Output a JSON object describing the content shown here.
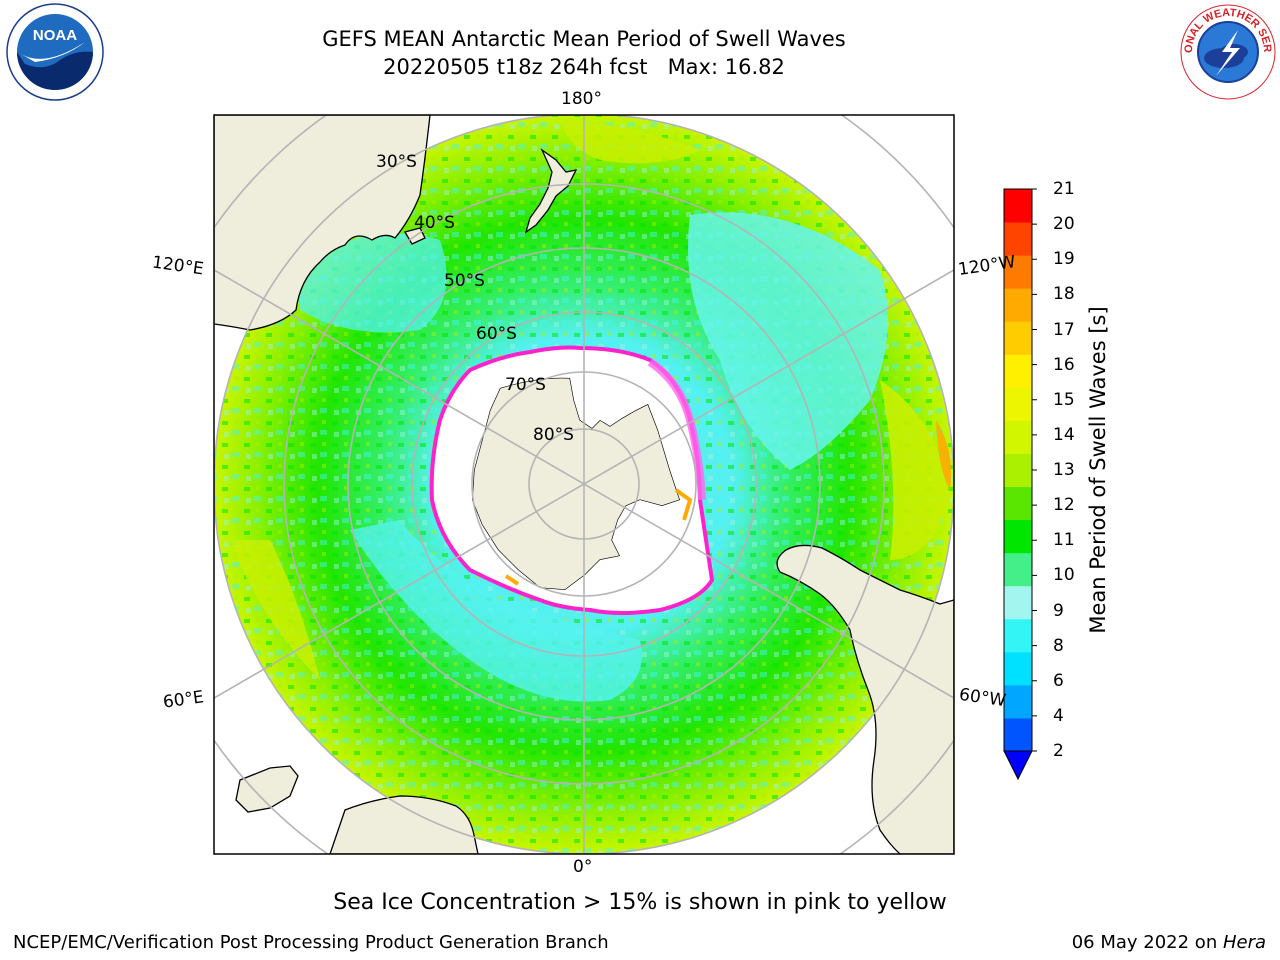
{
  "header": {
    "title_line1": "GEFS MEAN Antarctic Mean Period of Swell Waves",
    "title_line2": "20220505 t18z 264h fcst   Max: 16.82"
  },
  "logos": {
    "left": "noaa-logo",
    "right": "national-weather-service-logo"
  },
  "map": {
    "projection": "south-polar-stereographic",
    "longitude_labels": {
      "top": "180°",
      "bottom": "0°",
      "upper_left": "120°E",
      "upper_right": "120°W",
      "lower_left": "60°E",
      "lower_right": "60°W"
    },
    "latitude_labels": [
      "30°S",
      "40°S",
      "50°S",
      "60°S",
      "70°S",
      "80°S"
    ],
    "land_color": "#efeddc",
    "ocean_dominant_colors": [
      "#00e600",
      "#55ee00",
      "#aaf500",
      "#44f5f5",
      "#99f5e6"
    ],
    "sea_ice_edge_colors": [
      "#ff00cc",
      "#ff66ff",
      "#ffaa00"
    ]
  },
  "colorbar": {
    "label": "Mean Period of Swell Waves [s]",
    "ticks": [
      "2",
      "4",
      "6",
      "8",
      "9",
      "10",
      "11",
      "12",
      "13",
      "14",
      "15",
      "16",
      "17",
      "18",
      "19",
      "20",
      "21"
    ],
    "colors": [
      "#0055ff",
      "#00a6ff",
      "#00e0ff",
      "#33f5f5",
      "#a3f5f0",
      "#44ee88",
      "#00e600",
      "#5ae600",
      "#aaf000",
      "#d2f500",
      "#eef500",
      "#fff000",
      "#ffcc00",
      "#ffaa00",
      "#ff7a00",
      "#ff4400",
      "#ff0000"
    ],
    "under_color": "#0000ff",
    "extend": "min"
  },
  "caption": "Sea Ice Concentration > 15% is shown in pink to yellow",
  "footer": {
    "left": "NCEP/EMC/Verification Post Processing Product Generation Branch",
    "right_date": "06 May 2022 on ",
    "right_system": "Hera"
  }
}
